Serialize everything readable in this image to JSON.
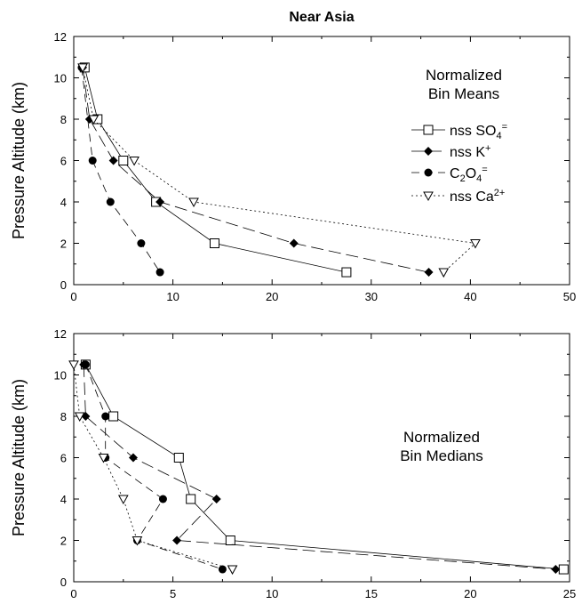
{
  "figure_title": "Near Asia",
  "colors": {
    "ink": "#000000",
    "background": "#ffffff"
  },
  "legend": [
    {
      "marker": "open-square",
      "dash": "solid",
      "parts": [
        [
          "nss SO",
          ""
        ],
        [
          "4",
          "sub"
        ],
        [
          "=",
          "sup"
        ]
      ]
    },
    {
      "marker": "filled-diamond",
      "dash": "long-dash",
      "parts": [
        [
          "nss K",
          ""
        ],
        [
          "+",
          "sup"
        ]
      ]
    },
    {
      "marker": "filled-circle",
      "dash": "dash",
      "parts": [
        [
          "C",
          ""
        ],
        [
          "2",
          "sub"
        ],
        [
          "O",
          ""
        ],
        [
          "4",
          "sub"
        ],
        [
          "=",
          "sup"
        ]
      ]
    },
    {
      "marker": "open-triangle-down",
      "dash": "dotted",
      "parts": [
        [
          "nss Ca",
          ""
        ],
        [
          "2+",
          "sup"
        ]
      ]
    }
  ],
  "chart_data": [
    {
      "type": "line",
      "title": "Near Asia",
      "annotation": [
        "Normalized",
        "Bin Means"
      ],
      "ylabel": "Pressure Altitude (km)",
      "xlabel": "",
      "xlim": [
        0,
        50
      ],
      "ylim": [
        0,
        12
      ],
      "xticks": [
        0,
        10,
        20,
        30,
        40,
        50
      ],
      "yticks": [
        0,
        2,
        4,
        6,
        8,
        10,
        12
      ],
      "legend_position": "right",
      "grid": false,
      "series": [
        {
          "name": "nss SO4=",
          "marker": "open-square",
          "dash": "solid",
          "x": [
            1.1,
            2.4,
            5.0,
            8.3,
            14.2,
            27.5
          ],
          "y": [
            10.5,
            8.0,
            6.0,
            4.0,
            2.0,
            0.6
          ]
        },
        {
          "name": "nss K+",
          "marker": "filled-diamond",
          "dash": "long-dash",
          "x": [
            0.9,
            1.6,
            4.0,
            8.7,
            22.2,
            35.8
          ],
          "y": [
            10.5,
            8.0,
            6.0,
            4.0,
            2.0,
            0.6
          ]
        },
        {
          "name": "C2O4=",
          "marker": "filled-circle",
          "dash": "dash",
          "x": [
            0.8,
            1.9,
            3.7,
            6.8,
            8.7
          ],
          "y": [
            10.5,
            6.0,
            4.0,
            2.0,
            0.6
          ]
        },
        {
          "name": "nss Ca2+",
          "marker": "open-triangle-down",
          "dash": "dotted",
          "x": [
            0.9,
            2.0,
            6.1,
            12.1,
            40.5,
            37.3
          ],
          "y": [
            10.5,
            8.0,
            6.0,
            4.0,
            2.0,
            0.6
          ]
        }
      ]
    },
    {
      "type": "line",
      "title": "",
      "annotation": [
        "Normalized",
        "Bin Medians"
      ],
      "ylabel": "Pressure Altitude (km)",
      "xlabel": "",
      "xlim": [
        0,
        25
      ],
      "ylim": [
        0,
        12
      ],
      "xticks": [
        0,
        5,
        10,
        15,
        20,
        25
      ],
      "yticks": [
        0,
        2,
        4,
        6,
        8,
        10,
        12
      ],
      "legend_position": "none",
      "grid": false,
      "series": [
        {
          "name": "nss SO4=",
          "marker": "open-square",
          "dash": "solid",
          "x": [
            0.6,
            2.0,
            5.3,
            5.9,
            7.9,
            24.7
          ],
          "y": [
            10.5,
            8.0,
            6.0,
            4.0,
            2.0,
            0.6
          ]
        },
        {
          "name": "nss K+",
          "marker": "filled-diamond",
          "dash": "long-dash",
          "x": [
            0.5,
            0.6,
            3.0,
            7.2,
            5.2,
            24.3
          ],
          "y": [
            10.5,
            8.0,
            6.0,
            4.0,
            2.0,
            0.6
          ]
        },
        {
          "name": "C2O4=",
          "marker": "filled-circle",
          "dash": "dash",
          "x": [
            0.6,
            1.6,
            1.6,
            4.5,
            3.2,
            7.5
          ],
          "y": [
            10.5,
            8.0,
            6.0,
            4.0,
            2.0,
            0.6
          ]
        },
        {
          "name": "nss Ca2+",
          "marker": "open-triangle-down",
          "dash": "dotted",
          "x": [
            0.0,
            0.3,
            1.5,
            2.5,
            3.2,
            8.0
          ],
          "y": [
            10.5,
            8.0,
            6.0,
            4.0,
            2.0,
            0.6
          ]
        }
      ]
    }
  ]
}
